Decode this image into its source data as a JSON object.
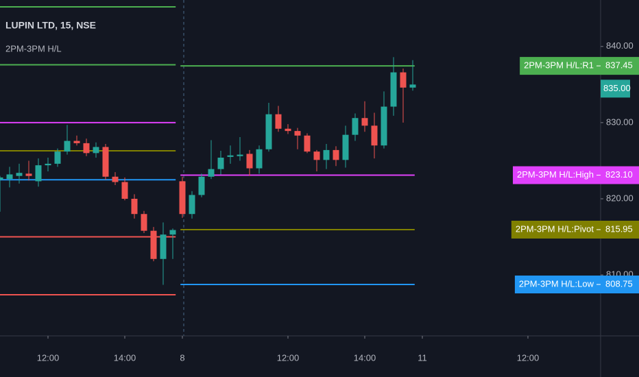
{
  "chart_data": {
    "type": "candlestick",
    "title": "LUPIN LTD, 15, NSE",
    "subtitle": "2PM-3PM H/L",
    "x": [
      0,
      1,
      2,
      3,
      4,
      5,
      6,
      7,
      8,
      9,
      10,
      11,
      12,
      13,
      14,
      15,
      16,
      17,
      18,
      19,
      20,
      21,
      22,
      23,
      24,
      25,
      26,
      27,
      28,
      29,
      30,
      31,
      32,
      33,
      34,
      35,
      36,
      37,
      38,
      39,
      40,
      41,
      42,
      43
    ],
    "open": [
      822.5,
      822.6,
      823.0,
      823.3,
      822.3,
      824.4,
      824.6,
      826.2,
      827.6,
      827.3,
      826.0,
      826.8,
      822.9,
      822.2,
      820.0,
      818.0,
      815.8,
      812.1,
      815.3,
      822.3,
      818.0,
      820.5,
      822.9,
      823.9,
      825.5,
      825.6,
      825.9,
      824.0,
      826.5,
      831.1,
      829.2,
      828.9,
      828.3,
      826.2,
      825.1,
      826.4,
      825.1,
      828.4,
      830.6,
      829.6,
      827.0,
      832.1,
      836.6,
      834.6
    ],
    "high": [
      823.0,
      824.2,
      824.6,
      825.0,
      825.3,
      825.4,
      826.6,
      829.7,
      828.3,
      827.9,
      827.4,
      827.2,
      823.5,
      822.8,
      820.6,
      818.4,
      816.3,
      816.9,
      816.1,
      822.9,
      821.0,
      823.3,
      827.7,
      826.3,
      827.0,
      828.1,
      826.4,
      827.0,
      832.6,
      832.2,
      829.8,
      829.3,
      828.6,
      826.4,
      827.2,
      826.9,
      829.6,
      831.2,
      832.8,
      831.3,
      834.1,
      838.6,
      837.1,
      838.2
    ],
    "low": [
      818.3,
      821.5,
      822.0,
      822.4,
      821.6,
      823.6,
      824.2,
      825.8,
      827.0,
      825.6,
      825.4,
      822.5,
      821.8,
      819.8,
      817.4,
      815.5,
      811.8,
      808.7,
      812.1,
      817.5,
      817.4,
      820.2,
      822.6,
      823.2,
      824.6,
      825.0,
      823.0,
      823.3,
      826.2,
      828.8,
      828.5,
      826.5,
      826.0,
      823.6,
      823.9,
      824.3,
      824.1,
      827.6,
      828.8,
      825.3,
      826.6,
      830.9,
      830.0,
      834.2
    ],
    "close": [
      822.8,
      823.2,
      823.4,
      823.0,
      824.4,
      824.6,
      826.2,
      827.6,
      827.3,
      826.0,
      826.8,
      822.9,
      822.2,
      820.0,
      818.0,
      815.8,
      812.1,
      815.3,
      815.9,
      818.0,
      820.5,
      822.9,
      823.9,
      825.4,
      825.7,
      825.8,
      824.0,
      826.5,
      831.1,
      829.2,
      828.9,
      828.3,
      826.2,
      825.1,
      826.4,
      825.1,
      828.4,
      830.6,
      829.6,
      827.0,
      832.1,
      836.6,
      834.6,
      835.0
    ],
    "up_color": "#26a69a",
    "down_color": "#ef5350",
    "xlim": [
      0,
      62.5
    ],
    "xticks": [
      {
        "value": 5,
        "label": "12:00"
      },
      {
        "value": 13,
        "label": "14:00"
      },
      {
        "value": 19,
        "label": "8"
      },
      {
        "value": 30,
        "label": "12:00"
      },
      {
        "value": 38,
        "label": "14:00"
      },
      {
        "value": 44,
        "label": "11"
      },
      {
        "value": 55,
        "label": "12:00"
      }
    ],
    "ylim": [
      802,
      846.1
    ],
    "yticks": [
      {
        "value": 810,
        "label": "810.00"
      },
      {
        "value": 820,
        "label": "820.00"
      },
      {
        "value": 830,
        "label": "830.00"
      },
      {
        "value": 840,
        "label": "840.00"
      }
    ],
    "last_price": {
      "value": 835,
      "label": "835.00",
      "color": "#26a69a"
    },
    "levels": [
      {
        "name": "2PM-3PM H/L:R1",
        "color": "#4caf50",
        "value": 837.45,
        "value_label": "837.45"
      },
      {
        "name": "2PM-3PM H/L:High",
        "color": "#e040fb",
        "value": 823.1,
        "value_label": "823.10"
      },
      {
        "name": "2PM-3PM H/L:Pivot",
        "color": "#808000",
        "value": 815.95,
        "value_label": "815.95"
      },
      {
        "name": "2PM-3PM H/L:Low",
        "color": "#2196f3",
        "value": 808.75,
        "value_label": "808.75"
      }
    ],
    "prior_levels": [
      {
        "color": "#4caf50",
        "value": 845.2
      },
      {
        "color": "#4caf50",
        "value": 837.6
      },
      {
        "color": "#e040fb",
        "value": 830.0
      },
      {
        "color": "#808000",
        "value": 826.3
      },
      {
        "color": "#2196f3",
        "value": 822.5
      },
      {
        "color": "#ef5350",
        "value": 815.0
      },
      {
        "color": "#ef5350",
        "value": 807.4
      }
    ]
  }
}
